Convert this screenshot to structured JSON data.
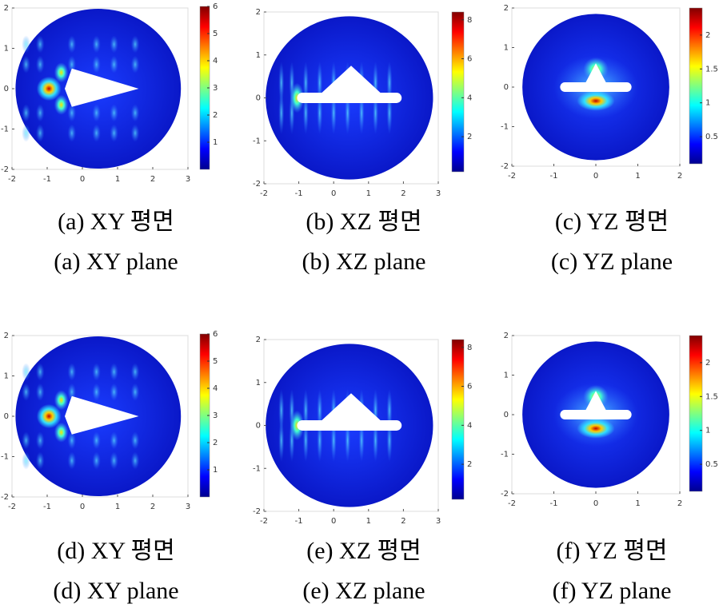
{
  "panels": [
    {
      "xlim": [
        -2,
        3
      ],
      "ylim": [
        -2,
        2
      ],
      "xticks": [
        -2,
        -1,
        0,
        1,
        2,
        3
      ],
      "yticks": [
        -2,
        -1,
        0,
        1,
        2
      ],
      "clim": [
        0,
        6
      ],
      "cticks": [
        1,
        2,
        3,
        4,
        5,
        6
      ],
      "caption": [
        "(a)  XY  평면",
        "(a)  XY  plane"
      ]
    },
    {
      "xlim": [
        -2,
        3
      ],
      "ylim": [
        -2,
        2
      ],
      "xticks": [
        -2,
        -1,
        0,
        1,
        2,
        3
      ],
      "yticks": [
        -2,
        -1,
        0,
        1,
        2
      ],
      "clim": [
        0.2,
        8.4
      ],
      "cticks": [
        2,
        4,
        6,
        8
      ],
      "caption": [
        "(b)  XZ  평면",
        "(b)  XZ  plane"
      ]
    },
    {
      "xlim": [
        -2,
        2
      ],
      "ylim": [
        -2,
        2
      ],
      "xticks": [
        -2,
        -1,
        0,
        1,
        2
      ],
      "yticks": [
        -2,
        -1,
        0,
        1,
        2
      ],
      "clim": [
        0.1,
        2.4
      ],
      "cticks": [
        0.5,
        1,
        1.5,
        2
      ],
      "caption": [
        "(c)  YZ  평면",
        "(c)  YZ  plane"
      ]
    },
    {
      "xlim": [
        -2,
        3
      ],
      "ylim": [
        -2,
        2
      ],
      "xticks": [
        -2,
        -1,
        0,
        1,
        2,
        3
      ],
      "yticks": [
        -2,
        -1,
        0,
        1,
        2
      ],
      "clim": [
        0,
        6
      ],
      "cticks": [
        1,
        2,
        3,
        4,
        5,
        6
      ],
      "caption": [
        "(d)  XY  평면",
        "(d)  XY  plane"
      ]
    },
    {
      "xlim": [
        -2,
        3
      ],
      "ylim": [
        -2,
        2
      ],
      "xticks": [
        -2,
        -1,
        0,
        1,
        2,
        3
      ],
      "yticks": [
        -2,
        -1,
        0,
        1,
        2
      ],
      "clim": [
        0.2,
        8.4
      ],
      "cticks": [
        2,
        4,
        6,
        8
      ],
      "caption": [
        "(e)  XZ  평면",
        "(e)  XZ  plane"
      ]
    },
    {
      "xlim": [
        -2,
        2
      ],
      "ylim": [
        -2,
        2
      ],
      "xticks": [
        -2,
        -1,
        0,
        1,
        2
      ],
      "yticks": [
        -2,
        -1,
        0,
        1,
        2
      ],
      "clim": [
        0.1,
        2.4
      ],
      "cticks": [
        0.5,
        1,
        1.5,
        2
      ],
      "caption": [
        "(f)  YZ  평면",
        "(f)  YZ  plane"
      ]
    }
  ]
}
